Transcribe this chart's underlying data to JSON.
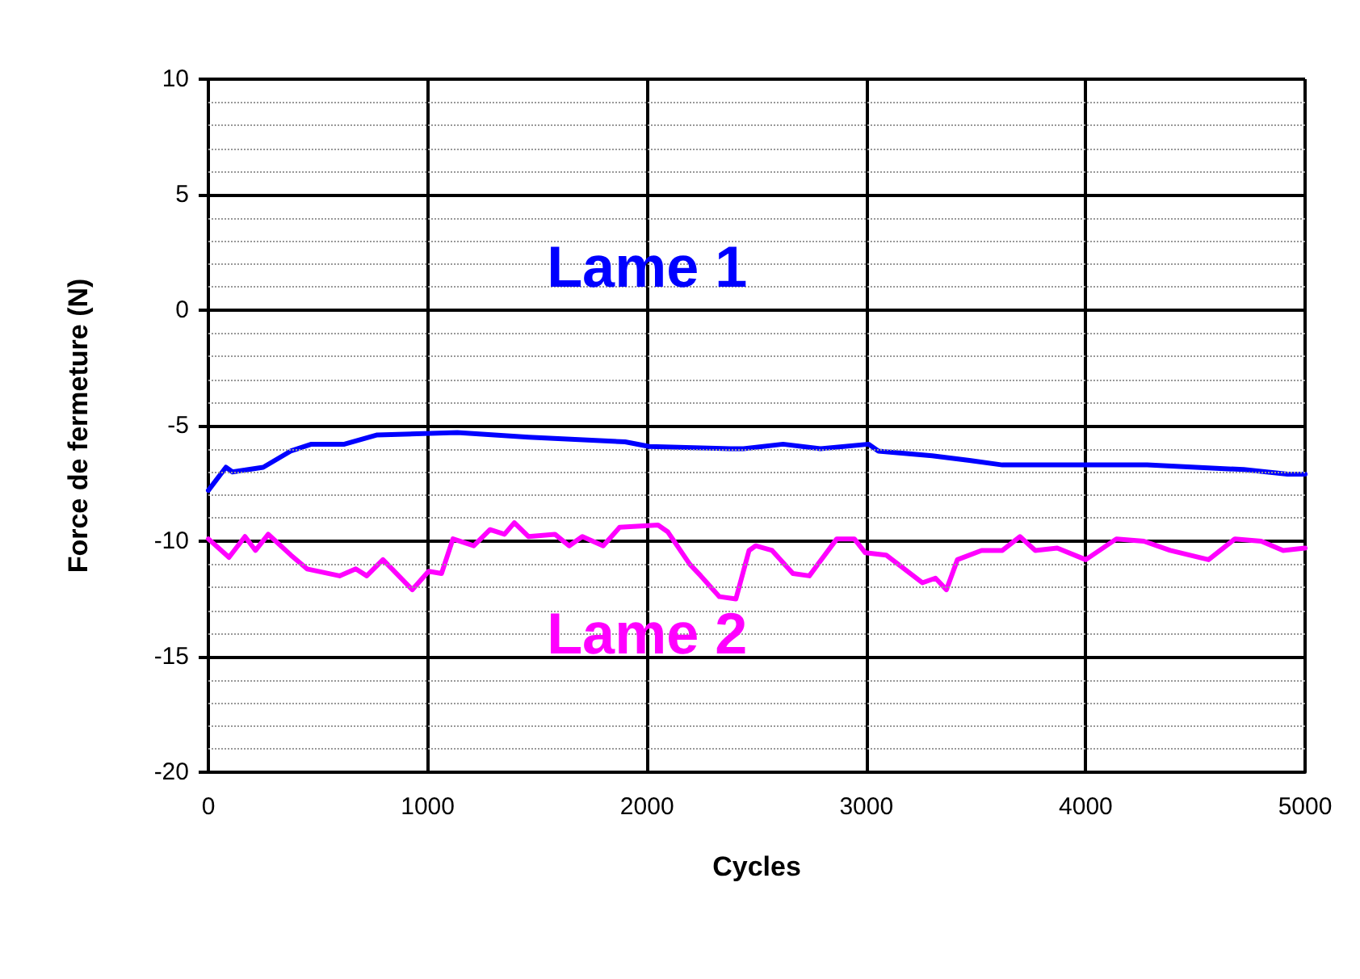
{
  "chart_data": {
    "type": "line",
    "xlabel": "Cycles",
    "ylabel": "Force de fermeture (N)",
    "xlim": [
      0,
      5000
    ],
    "xticks": [
      0,
      1000,
      2000,
      3000,
      4000,
      5000
    ],
    "ylim": [
      -20,
      10
    ],
    "yticks": [
      -20,
      -15,
      -10,
      -5,
      0,
      5,
      10
    ],
    "grid": true,
    "legend": false,
    "marker": "none",
    "line_style": "solid",
    "series": [
      {
        "name": "Lame 1",
        "color": "#0000ff",
        "x": [
          0,
          80,
          110,
          250,
          375,
          470,
          620,
          770,
          1135,
          1460,
          1900,
          2010,
          2380,
          2440,
          2620,
          2790,
          3010,
          3055,
          3300,
          3470,
          3620,
          4280,
          4720,
          4920,
          5000
        ],
        "values": [
          -7.8,
          -6.8,
          -7.0,
          -6.8,
          -6.1,
          -5.8,
          -5.8,
          -5.4,
          -5.3,
          -5.5,
          -5.7,
          -5.9,
          -6.0,
          -6.0,
          -5.8,
          -6.0,
          -5.8,
          -6.1,
          -6.3,
          -6.5,
          -6.7,
          -6.7,
          -6.9,
          -7.1,
          -7.1
        ]
      },
      {
        "name": "Lame 2",
        "color": "#ff00ff",
        "x": [
          0,
          94,
          167,
          215,
          273,
          376,
          450,
          598,
          672,
          722,
          796,
          930,
          1004,
          1063,
          1115,
          1210,
          1284,
          1350,
          1395,
          1460,
          1580,
          1645,
          1705,
          1800,
          1875,
          2050,
          2095,
          2195,
          2245,
          2330,
          2405,
          2465,
          2495,
          2570,
          2665,
          2740,
          2865,
          2945,
          2995,
          3090,
          3255,
          3315,
          3365,
          3415,
          3525,
          3620,
          3700,
          3770,
          3870,
          4000,
          4140,
          4265,
          4385,
          4560,
          4680,
          4800,
          4900,
          5000
        ],
        "values": [
          -9.9,
          -10.7,
          -9.8,
          -10.4,
          -9.7,
          -10.6,
          -11.2,
          -11.5,
          -11.2,
          -11.5,
          -10.8,
          -12.1,
          -11.3,
          -11.4,
          -9.9,
          -10.2,
          -9.5,
          -9.7,
          -9.2,
          -9.8,
          -9.7,
          -10.2,
          -9.8,
          -10.2,
          -9.4,
          -9.3,
          -9.6,
          -11.0,
          -11.5,
          -12.4,
          -12.5,
          -10.4,
          -10.2,
          -10.4,
          -11.4,
          -11.5,
          -9.9,
          -9.9,
          -10.5,
          -10.6,
          -11.8,
          -11.6,
          -12.1,
          -10.8,
          -10.4,
          -10.4,
          -9.8,
          -10.4,
          -10.3,
          -10.8,
          -9.9,
          -10.0,
          -10.4,
          -10.8,
          -9.9,
          -10.0,
          -10.4,
          -10.3
        ]
      }
    ]
  }
}
